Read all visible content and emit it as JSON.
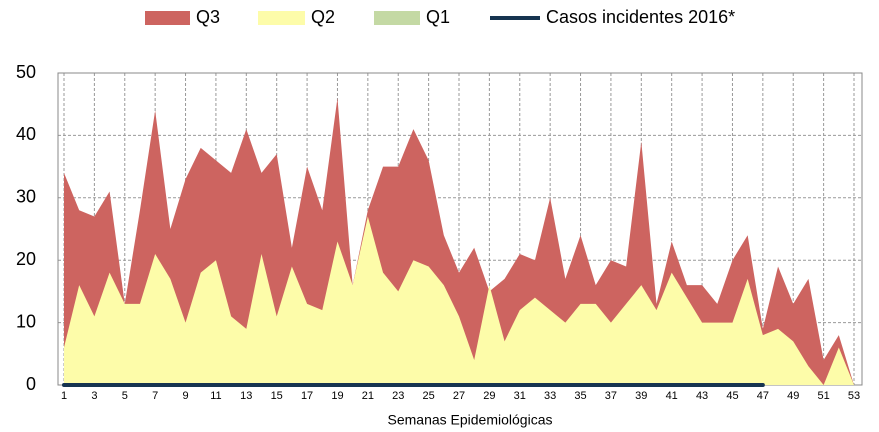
{
  "chart_data": {
    "type": "area",
    "x": [
      1,
      2,
      3,
      4,
      5,
      6,
      7,
      8,
      9,
      10,
      11,
      12,
      13,
      14,
      15,
      16,
      17,
      18,
      19,
      20,
      21,
      22,
      23,
      24,
      25,
      26,
      27,
      28,
      29,
      30,
      31,
      32,
      33,
      34,
      35,
      36,
      37,
      38,
      39,
      40,
      41,
      42,
      43,
      44,
      45,
      46,
      47,
      48,
      49,
      50,
      51,
      52,
      53
    ],
    "xlim": [
      1,
      53
    ],
    "xticks": [
      1,
      3,
      5,
      7,
      9,
      11,
      13,
      15,
      17,
      19,
      21,
      23,
      25,
      27,
      29,
      31,
      33,
      35,
      37,
      39,
      41,
      43,
      45,
      47,
      49,
      51,
      53
    ],
    "ylim": [
      0,
      50
    ],
    "yticks": [
      0,
      10,
      20,
      30,
      40,
      50
    ],
    "grid": true,
    "x_label": "Semanas Epidemiológicas",
    "legend": "top",
    "series": [
      {
        "name": "Q3",
        "color": "#cd6460",
        "kind": "area",
        "values": [
          34,
          28,
          27,
          31,
          13,
          28,
          44,
          25,
          33,
          38,
          36,
          34,
          41,
          34,
          37,
          22,
          35,
          28,
          46,
          16,
          28,
          35,
          35,
          41,
          36,
          24,
          18,
          22,
          15,
          17,
          21,
          20,
          30,
          17,
          24,
          16,
          20,
          19,
          39,
          13,
          23,
          16,
          16,
          13,
          20,
          24,
          9,
          19,
          13,
          17,
          4,
          8,
          0
        ]
      },
      {
        "name": "Q2",
        "color": "#fdfca9",
        "kind": "area",
        "values": [
          6,
          16,
          11,
          18,
          13,
          13,
          21,
          17,
          10,
          18,
          20,
          11,
          9,
          21,
          11,
          19,
          13,
          12,
          23,
          16,
          27,
          18,
          15,
          20,
          19,
          16,
          11,
          4,
          16,
          7,
          12,
          14,
          12,
          10,
          13,
          13,
          10,
          13,
          16,
          12,
          18,
          14,
          10,
          10,
          10,
          17,
          8,
          9,
          7,
          3,
          0,
          6,
          0
        ]
      },
      {
        "name": "Q1",
        "color": "#c4d9a4",
        "kind": "area",
        "values": [
          0,
          0,
          0,
          0,
          0,
          0,
          0,
          0,
          0,
          0,
          0,
          0,
          0,
          0,
          0,
          0,
          0,
          0,
          0,
          0,
          0,
          0,
          0,
          0,
          0,
          0,
          0,
          0,
          0,
          0,
          0,
          0,
          0,
          0,
          0,
          0,
          0,
          0,
          0,
          0,
          0,
          0,
          0,
          0,
          0,
          0,
          0,
          0,
          0,
          0,
          0,
          0,
          0
        ]
      },
      {
        "name": "Casos incidentes 2016*",
        "color": "#163450",
        "kind": "line",
        "values": [
          0,
          0,
          0,
          0,
          0,
          0,
          0,
          0,
          0,
          0,
          0,
          0,
          0,
          0,
          0,
          0,
          0,
          0,
          0,
          0,
          0,
          0,
          0,
          0,
          0,
          0,
          0,
          0,
          0,
          0,
          0,
          0,
          0,
          0,
          0,
          0,
          0,
          0,
          0,
          0,
          0,
          0,
          0,
          0,
          0,
          0,
          0,
          null,
          null,
          null,
          null,
          null,
          null
        ]
      }
    ]
  }
}
